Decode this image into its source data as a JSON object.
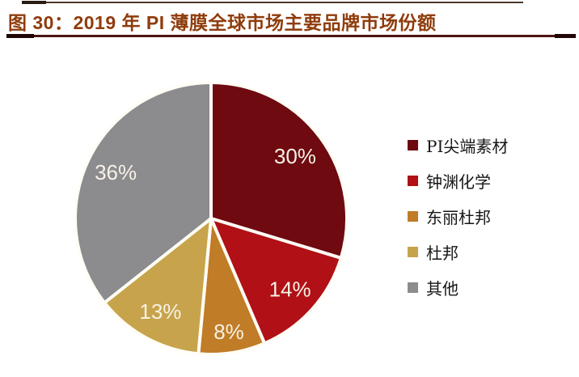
{
  "header": {
    "title": "图 30：2019 年 PI 薄膜全球市场主要品牌市场份额",
    "title_color": "#8f3c0c",
    "rule_color": "#4b1412"
  },
  "chart_data": {
    "type": "pie",
    "title": "2019 年 PI 薄膜全球市场主要品牌市场份额",
    "categories": [
      "PI尖端素材",
      "钟渊化学",
      "东丽杜邦",
      "杜邦",
      "其他"
    ],
    "values": [
      30,
      14,
      8,
      13,
      36
    ],
    "labels": [
      "30%",
      "14%",
      "8%",
      "13%",
      "36%"
    ],
    "colors": [
      "#6e0a10",
      "#b01016",
      "#c07c26",
      "#c7a44c",
      "#8c8b8e"
    ],
    "start_angle_deg": 0,
    "direction": "clockwise",
    "slice_border_color": "#fffdf5",
    "label_color": "#f6f2e6",
    "legend_position": "right",
    "background": "#ffffff"
  }
}
